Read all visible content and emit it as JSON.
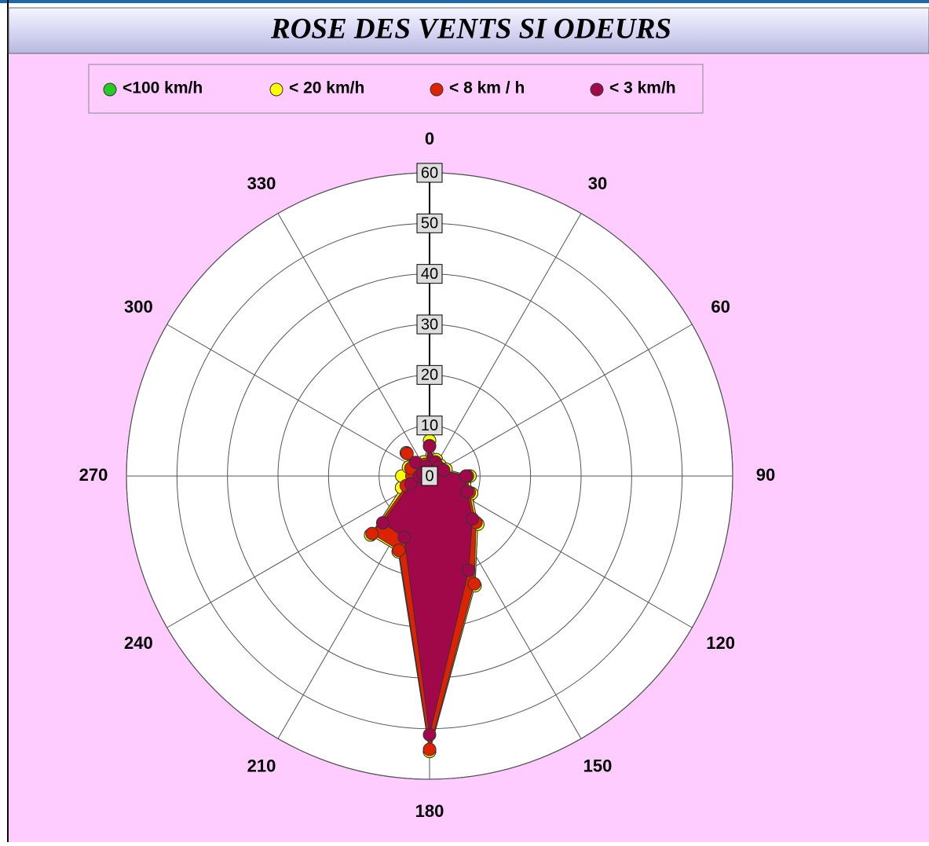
{
  "chart_data": {
    "type": "polar",
    "title": "ROSE DES VENTS SI ODEURS",
    "theta": [
      0,
      22.5,
      45,
      67.5,
      90,
      112.5,
      135,
      157.5,
      180,
      202.5,
      225,
      247.5,
      270,
      292.5,
      315,
      337.5
    ],
    "series": [
      {
        "name": "<100 km/h",
        "color": "#22cc22",
        "values": [
          7,
          3.5,
          3,
          3.5,
          8,
          9,
          13.5,
          23.5,
          54.5,
          16.2,
          16.5,
          6,
          5.5,
          4.5,
          6.5,
          3
        ]
      },
      {
        "name": "< 20 km/h",
        "color": "#ffff00",
        "values": [
          7,
          3.5,
          3,
          3.5,
          8,
          9,
          13.5,
          23.5,
          54.5,
          16.2,
          16.5,
          6,
          5.5,
          4.5,
          6.5,
          3
        ]
      },
      {
        "name": "< 8 km / h",
        "color": "#dd2200",
        "values": [
          6,
          3,
          2.5,
          3,
          7.5,
          8.5,
          13,
          23.1,
          54.1,
          15.9,
          16.1,
          5,
          3.5,
          4,
          6.3,
          2.5
        ]
      },
      {
        "name": "< 3 km/h",
        "color": "#a0084a",
        "values": [
          5.9,
          3,
          2.5,
          3,
          7.2,
          8,
          12,
          20.2,
          51.2,
          13.1,
          13.1,
          4,
          2,
          1.5,
          3.8,
          2
        ]
      }
    ],
    "rlim": [
      0,
      60
    ],
    "rticks": [
      0,
      10,
      20,
      30,
      40,
      50,
      60
    ],
    "thetaticks": [
      0,
      30,
      60,
      90,
      120,
      150,
      180,
      210,
      240,
      270,
      300,
      330
    ],
    "grid": true
  }
}
